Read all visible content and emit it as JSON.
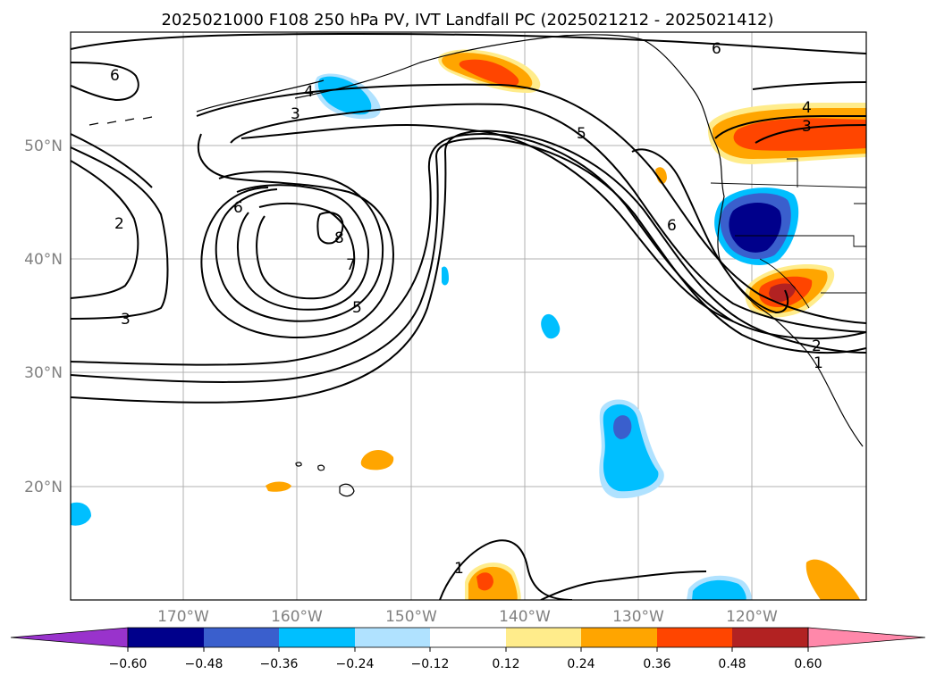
{
  "title": "2025021000 F108 250 hPa PV, IVT Landfall PC (2025021212 - 2025021412)",
  "latitude_labels": [
    "50°N",
    "40°N",
    "30°N",
    "20°N"
  ],
  "longitude_labels": [
    "170°W",
    "160°W",
    "150°W",
    "140°W",
    "130°W",
    "120°W"
  ],
  "colorbar": {
    "ticks": [
      "−0.60",
      "−0.48",
      "−0.36",
      "−0.24",
      "−0.12",
      "0.12",
      "0.24",
      "0.36",
      "0.48",
      "0.60"
    ],
    "colors": [
      "#9933cc",
      "#00008b",
      "#3a5fcd",
      "#00bfff",
      "#b0e2ff",
      "#ffffff",
      "#ffec8b",
      "#ffa500",
      "#ff4500",
      "#b22222",
      "#ff88aa"
    ]
  },
  "pv_contour_labels": [
    {
      "text": "6"
    },
    {
      "text": "4"
    },
    {
      "text": "3"
    },
    {
      "text": "2"
    },
    {
      "text": "3"
    },
    {
      "text": "6"
    },
    {
      "text": "8"
    },
    {
      "text": "7"
    },
    {
      "text": "5"
    },
    {
      "text": "5"
    },
    {
      "text": "6"
    },
    {
      "text": "6"
    },
    {
      "text": "4"
    },
    {
      "text": "3"
    },
    {
      "text": "2"
    },
    {
      "text": "1"
    },
    {
      "text": "1"
    }
  ],
  "anomaly_colors": {
    "light_yellow": "#ffec8b",
    "orange": "#ffa500",
    "red_orange": "#ff4500",
    "dark_red": "#b22222",
    "light_blue": "#b0e2ff",
    "deep_sky_blue": "#00bfff",
    "royal_blue": "#3a5fcd",
    "navy": "#00008b"
  }
}
